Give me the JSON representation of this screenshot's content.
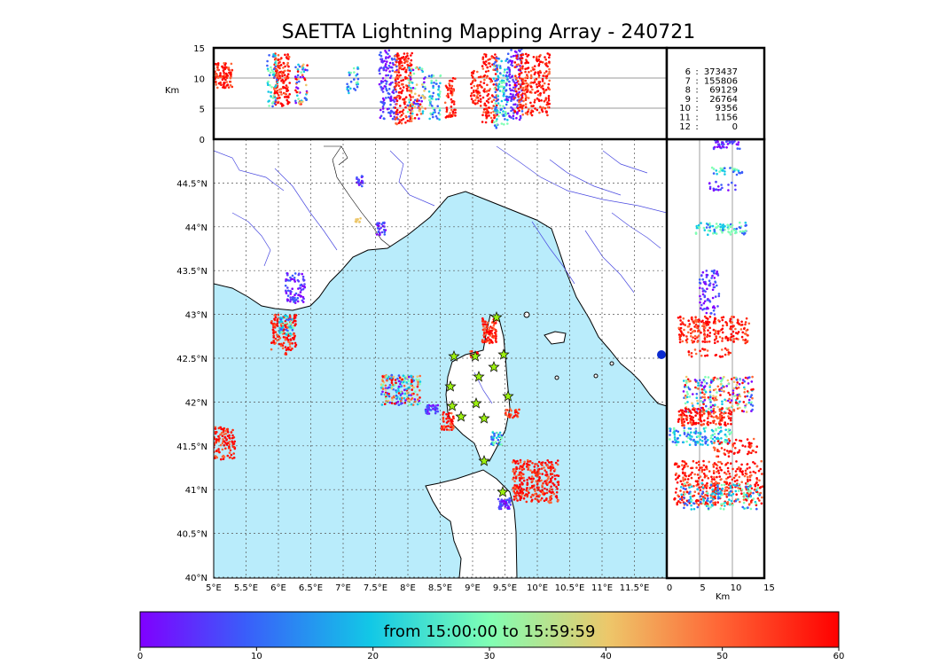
{
  "title": "SAETTA Lightning Mapping Array - 240721",
  "altitude_panel": {
    "ylabel": "Km",
    "yticks": [
      "15",
      "10",
      "5",
      "0"
    ]
  },
  "side_panel": {
    "xlabel": "Km",
    "xticks": [
      "0",
      "5",
      "10",
      "15"
    ]
  },
  "map": {
    "lat_labels": [
      "44.5°N",
      "44°N",
      "43.5°N",
      "43°N",
      "42.5°N",
      "42°N",
      "41.5°N",
      "41°N",
      "40.5°N",
      "40°N"
    ],
    "lon_labels": [
      "5°E",
      "5.5°E",
      "6°E",
      "6.5°E",
      "7°E",
      "7.5°E",
      "8°E",
      "8.5°E",
      "9°E",
      "9.5°E",
      "10°E",
      "10.5°E",
      "11°E",
      "11.5°E"
    ],
    "sea_color": "#b9ecfb",
    "land_color": "#ffffff",
    "stations": 14
  },
  "station_counts": [
    {
      "station": "6",
      "count": "373437",
      "color": "#000000"
    },
    {
      "station": "7",
      "count": "155806",
      "color": "#ff0000"
    },
    {
      "station": "8",
      "count": "69129",
      "color": "#000000"
    },
    {
      "station": "9",
      "count": "26764",
      "color": "#000000"
    },
    {
      "station": "10",
      "count": "9356",
      "color": "#000000"
    },
    {
      "station": "11",
      "count": "1156",
      "color": "#000000"
    },
    {
      "station": "12",
      "count": "0",
      "color": "#000000"
    }
  ],
  "colorbar": {
    "label": "from 15:00:00 to 15:59:59",
    "ticks": [
      "0",
      "10",
      "20",
      "30",
      "40",
      "50",
      "60"
    ],
    "colormap": "rainbow"
  }
}
